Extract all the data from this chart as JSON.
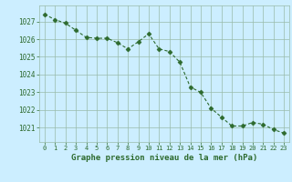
{
  "x": [
    0,
    1,
    2,
    3,
    4,
    5,
    6,
    7,
    8,
    9,
    10,
    11,
    12,
    13,
    14,
    15,
    16,
    17,
    18,
    19,
    20,
    21,
    22,
    23
  ],
  "y": [
    1027.4,
    1027.1,
    1026.9,
    1026.5,
    1026.1,
    1026.05,
    1026.05,
    1025.8,
    1025.45,
    1025.85,
    1026.3,
    1025.45,
    1025.3,
    1024.7,
    1023.3,
    1023.0,
    1022.1,
    1021.6,
    1021.1,
    1021.1,
    1021.3,
    1021.2,
    1020.9,
    1020.7
  ],
  "line_color": "#2d6a2d",
  "marker": "D",
  "markersize": 2.5,
  "linewidth": 0.8,
  "bg_color": "#cceeff",
  "grid_color": "#99bbaa",
  "xlabel": "Graphe pression niveau de la mer (hPa)",
  "xlabel_color": "#2d6a2d",
  "tick_color": "#2d6a2d",
  "ylabel_ticks": [
    1021,
    1022,
    1023,
    1024,
    1025,
    1026,
    1027
  ],
  "ylim": [
    1020.2,
    1027.9
  ],
  "xlim": [
    -0.5,
    23.5
  ],
  "xticks": [
    0,
    1,
    2,
    3,
    4,
    5,
    6,
    7,
    8,
    9,
    10,
    11,
    12,
    13,
    14,
    15,
    16,
    17,
    18,
    19,
    20,
    21,
    22,
    23
  ]
}
